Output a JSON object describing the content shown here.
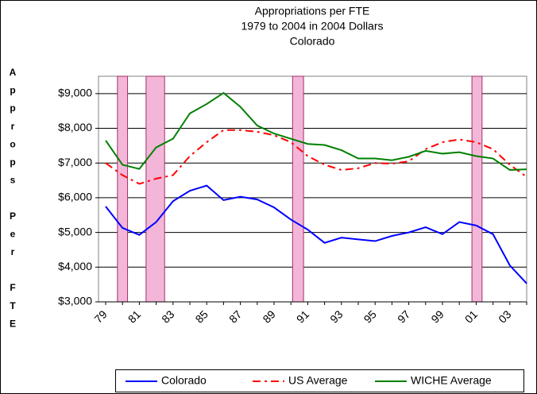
{
  "chart_data": {
    "type": "line",
    "title": [
      "Appropriations per FTE",
      "1979 to 2004 in 2004 Dollars",
      "Colorado"
    ],
    "y_label": "Approps Per FTE",
    "categories": [
      "79",
      null,
      "81",
      null,
      "83",
      null,
      "85",
      null,
      "87",
      null,
      "89",
      null,
      "91",
      null,
      "93",
      null,
      "95",
      null,
      "97",
      null,
      "99",
      null,
      "01",
      null,
      "03",
      null
    ],
    "series": [
      {
        "name": "Colorado",
        "color": "#0000ff",
        "dash": false,
        "values": [
          5750,
          5130,
          4930,
          5300,
          5900,
          6200,
          6350,
          5930,
          6030,
          5950,
          5720,
          5370,
          5080,
          4700,
          4850,
          4800,
          4750,
          4900,
          5000,
          5150,
          4950,
          5300,
          5200,
          4950,
          4050,
          3530
        ]
      },
      {
        "name": "US Average",
        "color": "#ff0000",
        "dash": true,
        "values": [
          7000,
          6650,
          6400,
          6550,
          6650,
          7200,
          7600,
          7950,
          7950,
          7900,
          7800,
          7600,
          7200,
          6950,
          6800,
          6850,
          7000,
          6980,
          7050,
          7400,
          7600,
          7680,
          7600,
          7400,
          6950,
          6600
        ]
      },
      {
        "name": "WICHE Average",
        "color": "#008000",
        "dash": false,
        "values": [
          7650,
          6950,
          6830,
          7450,
          7700,
          8430,
          8700,
          9020,
          8620,
          8080,
          7850,
          7700,
          7550,
          7520,
          7370,
          7130,
          7130,
          7080,
          7180,
          7350,
          7270,
          7310,
          7200,
          7130,
          6800,
          6820
        ]
      }
    ],
    "shaded_periods": [
      [
        0.7,
        1.3
      ],
      [
        2.4,
        3.5
      ],
      [
        11.1,
        11.75
      ],
      [
        21.75,
        22.35
      ]
    ],
    "shade_color": "#f4b6d8",
    "ylim": [
      3000,
      9500
    ],
    "yticks": [
      {
        "value": 3000,
        "label": "$3,000"
      },
      {
        "value": 4000,
        "label": "$4,000"
      },
      {
        "value": 5000,
        "label": "$5,000"
      },
      {
        "value": 6000,
        "label": "$6,000"
      },
      {
        "value": 7000,
        "label": "$7,000"
      },
      {
        "value": 8000,
        "label": "$8,000"
      },
      {
        "value": 9000,
        "label": "$9,000"
      }
    ],
    "grid": true,
    "legend": "bottom"
  }
}
